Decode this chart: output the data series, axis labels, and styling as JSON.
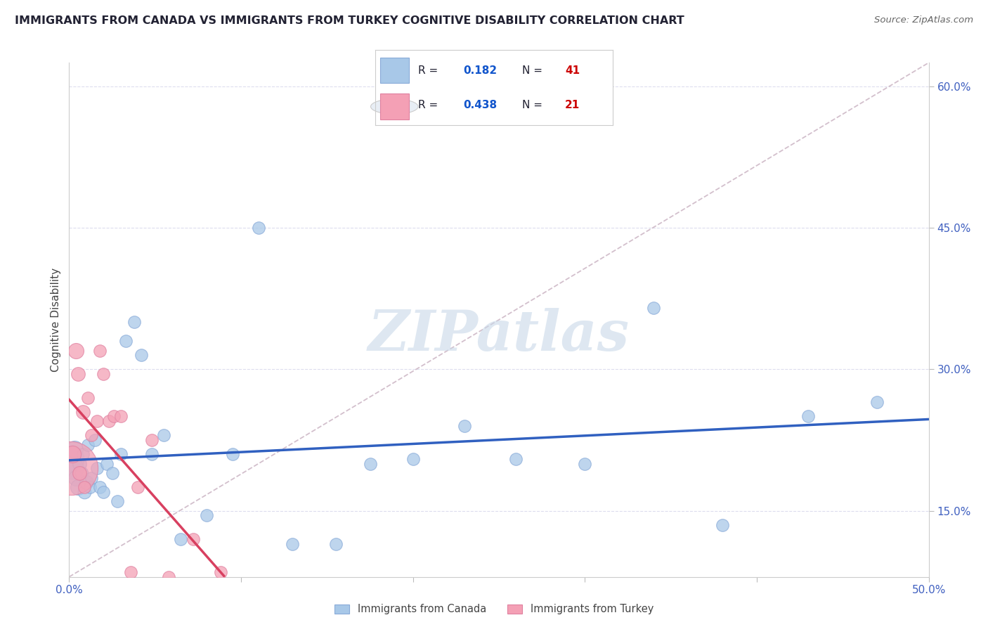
{
  "title": "IMMIGRANTS FROM CANADA VS IMMIGRANTS FROM TURKEY COGNITIVE DISABILITY CORRELATION CHART",
  "source": "Source: ZipAtlas.com",
  "ylabel": "Cognitive Disability",
  "xlim": [
    0.0,
    0.5
  ],
  "ylim": [
    0.08,
    0.625
  ],
  "canada_R": 0.182,
  "canada_N": 41,
  "turkey_R": 0.438,
  "turkey_N": 21,
  "canada_color": "#a8c8e8",
  "turkey_color": "#f4a0b5",
  "canada_line_color": "#3060c0",
  "turkey_line_color": "#d84060",
  "diag_line_color": "#c8b0c0",
  "watermark_color": "#c8d8e8",
  "canada_x": [
    0.001,
    0.002,
    0.003,
    0.004,
    0.005,
    0.006,
    0.007,
    0.008,
    0.009,
    0.01,
    0.011,
    0.012,
    0.013,
    0.015,
    0.016,
    0.018,
    0.02,
    0.022,
    0.025,
    0.028,
    0.03,
    0.033,
    0.038,
    0.042,
    0.048,
    0.055,
    0.065,
    0.08,
    0.095,
    0.11,
    0.13,
    0.155,
    0.175,
    0.2,
    0.23,
    0.26,
    0.3,
    0.34,
    0.38,
    0.43,
    0.47
  ],
  "canada_y": [
    0.205,
    0.195,
    0.215,
    0.185,
    0.175,
    0.2,
    0.19,
    0.21,
    0.17,
    0.18,
    0.22,
    0.175,
    0.185,
    0.225,
    0.195,
    0.175,
    0.17,
    0.2,
    0.19,
    0.16,
    0.21,
    0.33,
    0.35,
    0.315,
    0.21,
    0.23,
    0.12,
    0.145,
    0.21,
    0.45,
    0.115,
    0.115,
    0.2,
    0.205,
    0.24,
    0.205,
    0.2,
    0.365,
    0.135,
    0.25,
    0.265
  ],
  "canada_sizes": [
    700,
    500,
    300,
    250,
    250,
    200,
    180,
    160,
    180,
    200,
    160,
    160,
    160,
    160,
    160,
    160,
    160,
    160,
    160,
    160,
    160,
    160,
    160,
    160,
    160,
    160,
    160,
    160,
    160,
    160,
    160,
    160,
    160,
    160,
    160,
    160,
    160,
    160,
    160,
    160,
    160
  ],
  "turkey_x": [
    0.001,
    0.002,
    0.004,
    0.005,
    0.006,
    0.008,
    0.009,
    0.011,
    0.013,
    0.016,
    0.018,
    0.02,
    0.023,
    0.026,
    0.03,
    0.036,
    0.04,
    0.048,
    0.058,
    0.072,
    0.088
  ],
  "turkey_y": [
    0.195,
    0.21,
    0.32,
    0.295,
    0.19,
    0.255,
    0.175,
    0.27,
    0.23,
    0.245,
    0.32,
    0.295,
    0.245,
    0.25,
    0.25,
    0.085,
    0.175,
    0.225,
    0.08,
    0.12,
    0.085
  ],
  "turkey_sizes": [
    3000,
    300,
    250,
    200,
    200,
    200,
    160,
    160,
    160,
    160,
    160,
    160,
    160,
    160,
    160,
    160,
    160,
    160,
    160,
    160,
    160
  ],
  "watermark": "ZIPatlas",
  "background_color": "#ffffff"
}
